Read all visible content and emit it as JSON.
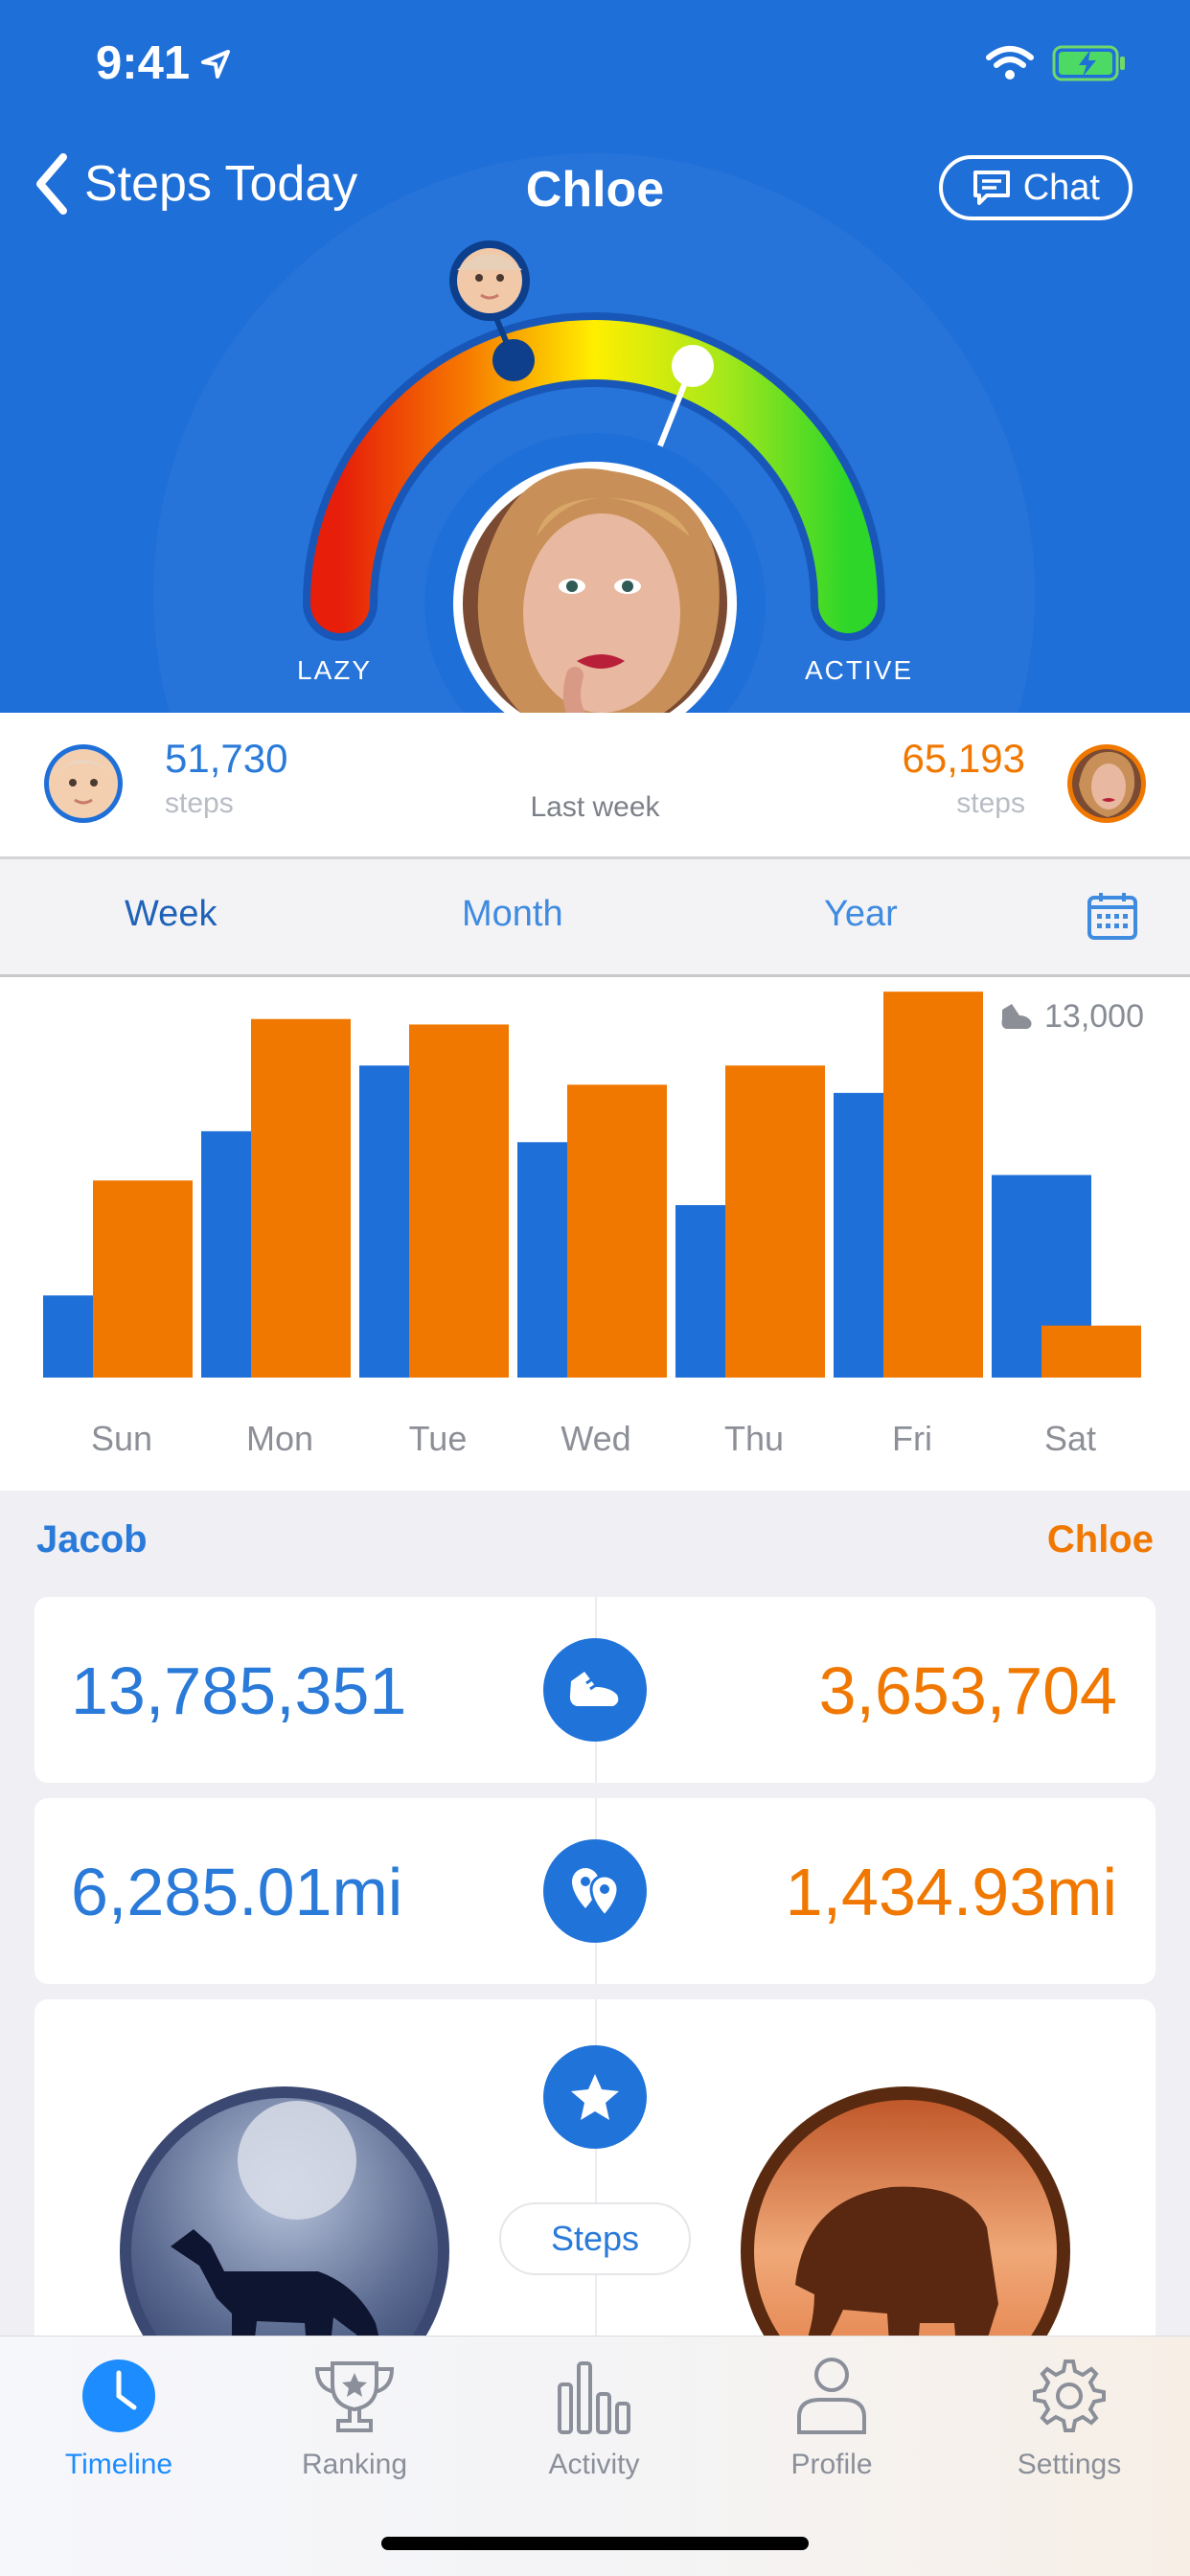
{
  "status": {
    "time": "9:41"
  },
  "nav": {
    "back_label": "Steps Today",
    "title": "Chloe",
    "chat_label": "Chat"
  },
  "gauge": {
    "lazy_label": "LAZY",
    "active_label": "ACTIVE",
    "jacob_level": 0.36,
    "chloe_level": 0.68
  },
  "compare": {
    "left": {
      "value": "51,730",
      "unit": "steps"
    },
    "right": {
      "value": "65,193",
      "unit": "steps"
    },
    "period": "Last week"
  },
  "tabs": {
    "week": "Week",
    "month": "Month",
    "year": "Year",
    "selected": "week"
  },
  "chart_data": {
    "type": "bar",
    "title": "",
    "goal_label": "13,000",
    "categories": [
      "Sun",
      "Mon",
      "Tue",
      "Wed",
      "Thu",
      "Fri",
      "Sat"
    ],
    "ylim": [
      0,
      14000
    ],
    "series": [
      {
        "name": "Jacob",
        "color": "#1f6fd8",
        "values": [
          3000,
          9000,
          11400,
          8600,
          6300,
          10400,
          7400
        ]
      },
      {
        "name": "Chloe",
        "color": "#f07800",
        "values": [
          7200,
          13100,
          12900,
          10700,
          11400,
          14100,
          1900
        ]
      }
    ]
  },
  "stats": {
    "left_name": "Jacob",
    "right_name": "Chloe",
    "steps": {
      "left": "13,785,351",
      "right": "3,653,704"
    },
    "distance": {
      "left": "6,285.01mi",
      "right": "1,434.93mi"
    },
    "badge_label": "Steps"
  },
  "tabbar": {
    "items": [
      {
        "label": "Timeline",
        "icon": "clock-icon"
      },
      {
        "label": "Ranking",
        "icon": "trophy-icon"
      },
      {
        "label": "Activity",
        "icon": "bar-chart-icon"
      },
      {
        "label": "Profile",
        "icon": "person-icon"
      },
      {
        "label": "Settings",
        "icon": "gear-icon"
      }
    ],
    "selected": "Timeline"
  },
  "colors": {
    "blue": "#1f6fd8",
    "orange": "#f07800",
    "light_blue": "#3f8be0"
  }
}
